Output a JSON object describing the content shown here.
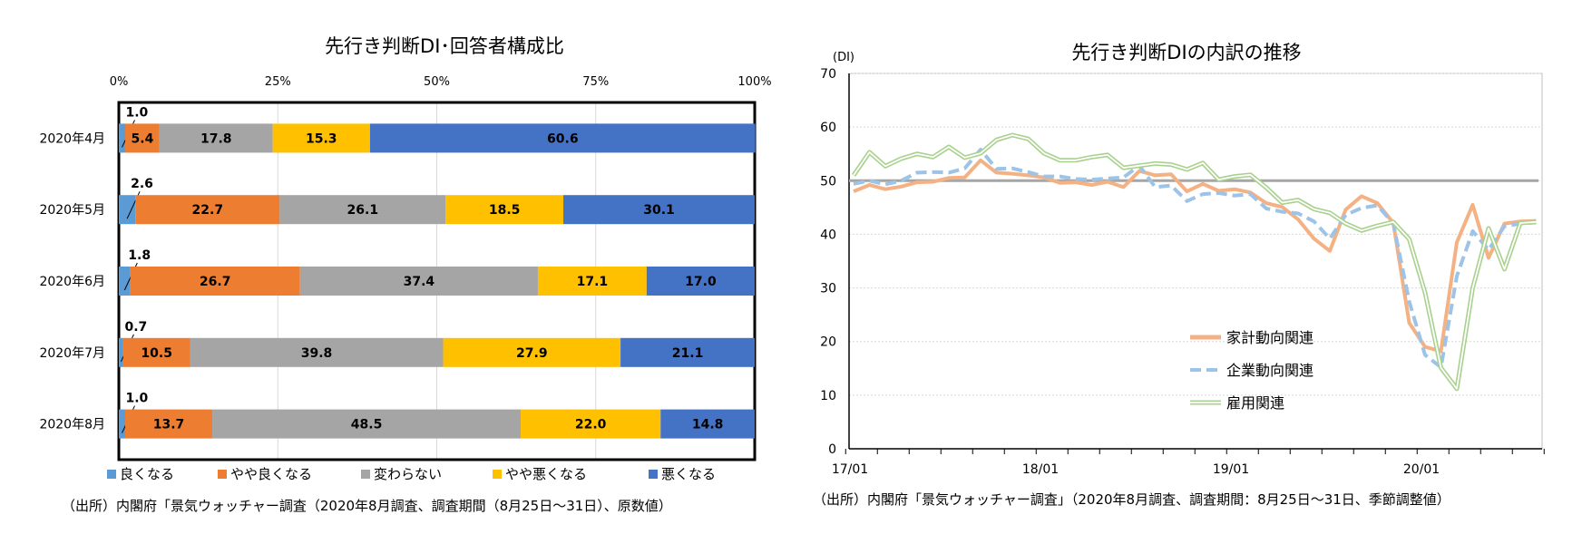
{
  "left_chart": {
    "title": "先行き判断DI･回答者構成比",
    "source": "（出所）内閣府「景気ウォッチャー調査（2020年8月調査、調査期間（8月25日～31日）、原数値）",
    "chart_data": {
      "type": "bar",
      "orientation": "horizontal-stacked-100",
      "xlim": [
        0,
        100
      ],
      "x_ticks": [
        "0%",
        "25%",
        "50%",
        "75%",
        "100%"
      ],
      "categories": [
        "2020年4月",
        "2020年5月",
        "2020年6月",
        "2020年7月",
        "2020年8月"
      ],
      "series": [
        {
          "name": "良くなる",
          "color": "#5B9BD5",
          "values": [
            1.0,
            2.6,
            1.8,
            0.7,
            1.0
          ],
          "labels": [
            "1.0",
            "2.6",
            "1.8",
            "0.7",
            "1.0"
          ]
        },
        {
          "name": "やや良くなる",
          "color": "#ED7D31",
          "values": [
            5.4,
            22.7,
            26.7,
            10.5,
            13.7
          ],
          "labels": [
            "5.4",
            "22.7",
            "26.7",
            "10.5",
            "13.7"
          ]
        },
        {
          "name": "変わらない",
          "color": "#A5A5A5",
          "values": [
            17.8,
            26.1,
            37.4,
            39.8,
            48.5
          ],
          "labels": [
            "17.8",
            "26.1",
            "37.4",
            "39.8",
            "48.5"
          ]
        },
        {
          "name": "やや悪くなる",
          "color": "#FFC000",
          "values": [
            15.3,
            18.5,
            17.1,
            27.9,
            22.0
          ],
          "labels": [
            "15.3",
            "18.5",
            "17.1",
            "27.9",
            "22.0"
          ]
        },
        {
          "name": "悪くなる",
          "color": "#4472C4",
          "values": [
            60.6,
            30.1,
            17.0,
            21.1,
            14.8
          ],
          "labels": [
            "60.6",
            "30.1",
            "17.0",
            "21.1",
            "14.8"
          ]
        }
      ]
    }
  },
  "right_chart": {
    "title": "先行き判断DIの内訳の推移",
    "y_unit": "(DI)",
    "source": "（出所）内閣府「景気ウォッチャー調査」（2020年8月調査、調査期間：8月25日～31日、季節調整値）",
    "chart_data": {
      "type": "line",
      "ylim": [
        0,
        70
      ],
      "y_ticks": [
        "0",
        "10",
        "20",
        "30",
        "40",
        "50",
        "60",
        "70"
      ],
      "x": [
        "2017-01",
        "2017-02",
        "2017-03",
        "2017-04",
        "2017-05",
        "2017-06",
        "2017-07",
        "2017-08",
        "2017-09",
        "2017-10",
        "2017-11",
        "2017-12",
        "2018-01",
        "2018-02",
        "2018-03",
        "2018-04",
        "2018-05",
        "2018-06",
        "2018-07",
        "2018-08",
        "2018-09",
        "2018-10",
        "2018-11",
        "2018-12",
        "2019-01",
        "2019-02",
        "2019-03",
        "2019-04",
        "2019-05",
        "2019-06",
        "2019-07",
        "2019-08",
        "2019-09",
        "2019-10",
        "2019-11",
        "2019-12",
        "2020-01",
        "2020-02",
        "2020-03",
        "2020-04",
        "2020-05",
        "2020-06",
        "2020-07",
        "2020-08"
      ],
      "x_tick_labels": [
        "17/01",
        "18/01",
        "19/01",
        "20/01"
      ],
      "reference_line": 50,
      "legend_position": "center-bottom",
      "series": [
        {
          "name": "家計動向関連",
          "color": "#F4B183",
          "style": "solid-thick",
          "values": [
            48.0,
            49.2,
            48.4,
            48.9,
            49.7,
            49.8,
            50.5,
            50.6,
            53.8,
            51.5,
            51.3,
            51.0,
            50.6,
            49.6,
            49.7,
            49.2,
            49.8,
            48.8,
            51.8,
            51.0,
            51.2,
            48.0,
            49.4,
            48.1,
            48.4,
            47.8,
            45.8,
            45.1,
            42.8,
            39.2,
            36.9,
            44.6,
            47.1,
            45.8,
            42.1,
            23.5,
            19.0,
            18.2,
            38.5,
            45.5,
            35.6,
            42.0,
            42.4,
            42.5
          ]
        },
        {
          "name": "企業動向関連",
          "color": "#9DC3E6",
          "style": "dashed-thick",
          "values": [
            49.4,
            50.0,
            49.3,
            50.0,
            51.5,
            51.6,
            51.5,
            52.3,
            55.8,
            52.2,
            52.3,
            51.6,
            50.8,
            50.8,
            50.3,
            50.2,
            50.4,
            50.6,
            52.8,
            48.8,
            49.1,
            46.2,
            47.5,
            47.7,
            47.2,
            47.5,
            44.8,
            44.2,
            43.9,
            42.4,
            39.2,
            43.6,
            44.9,
            45.4,
            42.0,
            27.5,
            17.5,
            15.2,
            32.2,
            40.6,
            37.1,
            41.5,
            42.0,
            42.2
          ]
        },
        {
          "name": "雇用関連",
          "color": "#A9D18E",
          "style": "double-line",
          "values": [
            51.0,
            55.3,
            52.7,
            54.1,
            55.0,
            54.4,
            56.3,
            54.3,
            55.1,
            57.6,
            58.5,
            57.8,
            55.1,
            53.8,
            53.8,
            54.4,
            54.8,
            52.4,
            52.8,
            53.2,
            53.0,
            52.1,
            53.3,
            50.2,
            50.8,
            51.1,
            48.7,
            45.9,
            46.4,
            44.7,
            44.0,
            42.0,
            40.7,
            41.6,
            42.3,
            39.1,
            29.1,
            15.1,
            11.2,
            30.0,
            41.1,
            33.5,
            42.1,
            42.3
          ]
        }
      ]
    }
  }
}
